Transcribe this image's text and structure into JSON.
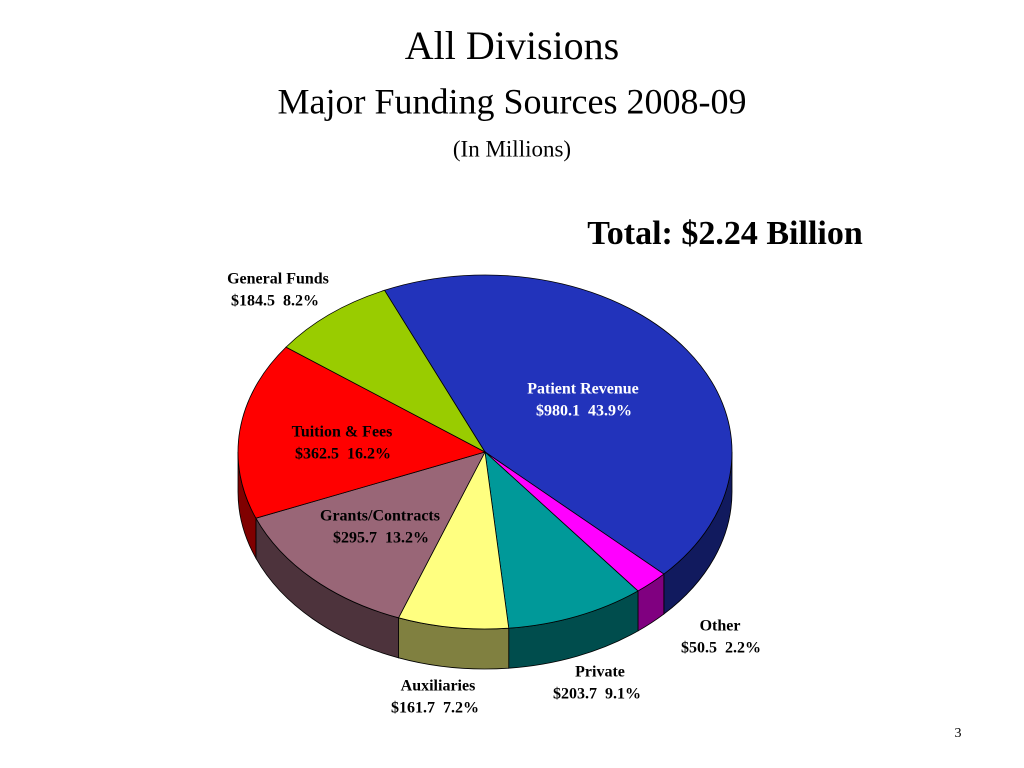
{
  "chart_data": {
    "type": "pie",
    "title": "All Divisions",
    "subtitle": "Major Funding Sources  2008-09",
    "unit_note": "(In  Millions)",
    "annotation": "Total:  $2.24 Billion",
    "categories": [
      "Patient Revenue",
      "Other",
      "Private",
      "Auxiliaries",
      "Grants/Contracts",
      "Tuition & Fees",
      "General Funds"
    ],
    "values": [
      980.1,
      50.5,
      203.7,
      161.7,
      295.7,
      362.5,
      184.5
    ],
    "value_labels": [
      "$980.1",
      "$50.5",
      "$203.7",
      "$161.7",
      "$295.7",
      "$362.5",
      "$184.5"
    ],
    "percents": [
      43.9,
      2.2,
      9.1,
      7.2,
      13.2,
      16.2,
      8.2
    ],
    "percent_labels": [
      "43.9%",
      "2.2%",
      "9.1%",
      "7.2%",
      "13.2%",
      "16.2%",
      "8.2%"
    ],
    "colors": [
      "#2233bb",
      "#ff00ff",
      "#009999",
      "#ffff80",
      "#996677",
      "#ff0000",
      "#99cc00"
    ]
  },
  "page_number": "3"
}
